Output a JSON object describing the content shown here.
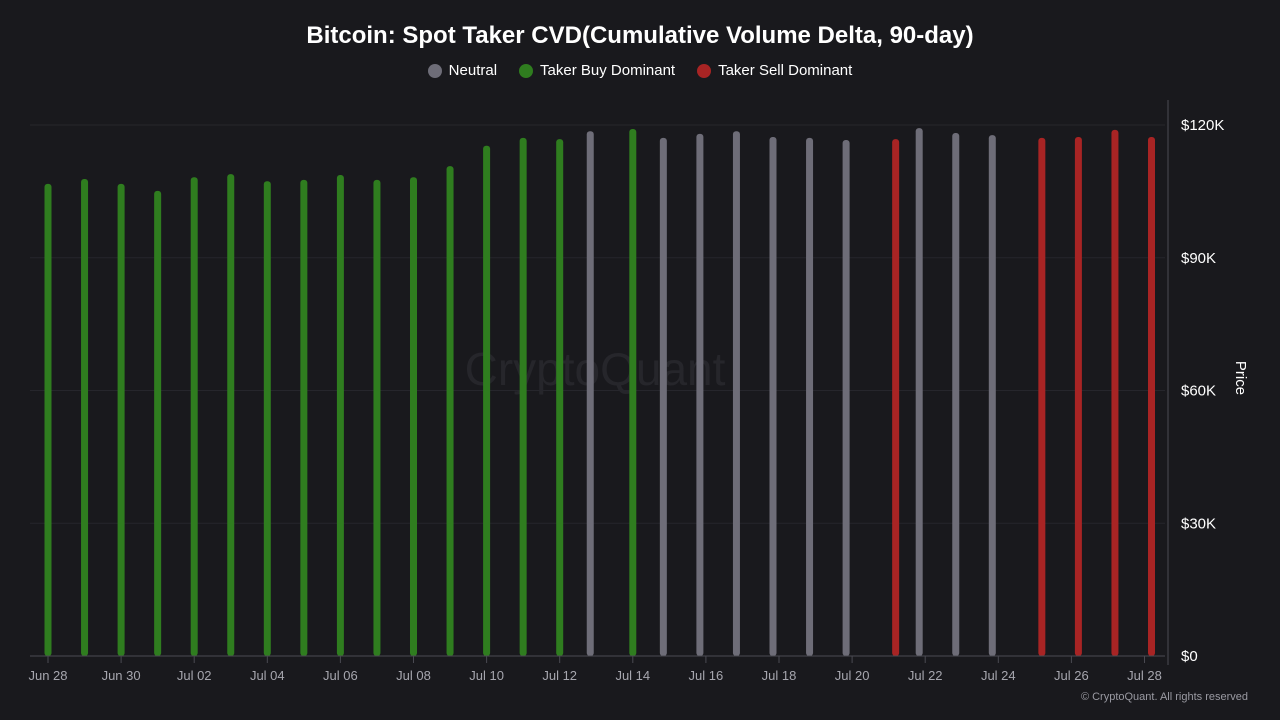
{
  "chart_data": {
    "type": "bar",
    "title": "Bitcoin: Spot Taker CVD(Cumulative Volume Delta, 90-day)",
    "ylabel": "Price",
    "ylim": [
      0,
      120000
    ],
    "yticks": [
      "$0",
      "$30K",
      "$60K",
      "$90K",
      "$120K"
    ],
    "ytick_values": [
      0,
      30000,
      60000,
      90000,
      120000
    ],
    "xticks": [
      "Jun 28",
      "Jun 30",
      "Jul 02",
      "Jul 04",
      "Jul 06",
      "Jul 08",
      "Jul 10",
      "Jul 12",
      "Jul 14",
      "Jul 16",
      "Jul 18",
      "Jul 20",
      "Jul 22",
      "Jul 24",
      "Jul 26",
      "Jul 28"
    ],
    "grid": true,
    "legend_placement": "top-center",
    "legend": [
      {
        "key": "neutral",
        "label": "Neutral",
        "color": "#6e6d78"
      },
      {
        "key": "buy",
        "label": "Taker Buy Dominant",
        "color": "#2f7d1f"
      },
      {
        "key": "sell",
        "label": "Taker Sell Dominant",
        "color": "#a82424"
      }
    ],
    "categories": [
      "Jun 28",
      "Jun 29",
      "Jun 30",
      "Jul 01",
      "Jul 02",
      "Jul 03",
      "Jul 04",
      "Jul 05",
      "Jul 06",
      "Jul 07",
      "Jul 08",
      "Jul 09",
      "Jul 10",
      "Jul 11",
      "Jul 12",
      "Jul 13",
      "Jul 14",
      "Jul 15",
      "Jul 16",
      "Jul 17",
      "Jul 18",
      "Jul 19",
      "Jul 20",
      "Jul 21",
      "Jul 22",
      "Jul 23",
      "Jul 24",
      "Jul 25",
      "Jul 26",
      "Jul 27",
      "Jul 28"
    ],
    "values": [
      106700,
      107800,
      106700,
      105100,
      108200,
      108900,
      107300,
      107600,
      108700,
      107600,
      108200,
      110700,
      115300,
      117100,
      116800,
      118600,
      119100,
      117100,
      118000,
      118600,
      117300,
      117100,
      116600,
      116800,
      119300,
      118200,
      117700,
      117100,
      117300,
      118900,
      117300
    ],
    "classes": [
      "buy",
      "buy",
      "buy",
      "buy",
      "buy",
      "buy",
      "buy",
      "buy",
      "buy",
      "buy",
      "buy",
      "buy",
      "buy",
      "buy",
      "buy",
      "neutral",
      "buy",
      "neutral",
      "neutral",
      "neutral",
      "neutral",
      "neutral",
      "neutral",
      "sell",
      "neutral",
      "neutral",
      "neutral",
      "sell",
      "sell",
      "sell",
      "sell"
    ]
  },
  "watermark": "CryptoQuant",
  "footer": "© CryptoQuant. All rights reserved"
}
